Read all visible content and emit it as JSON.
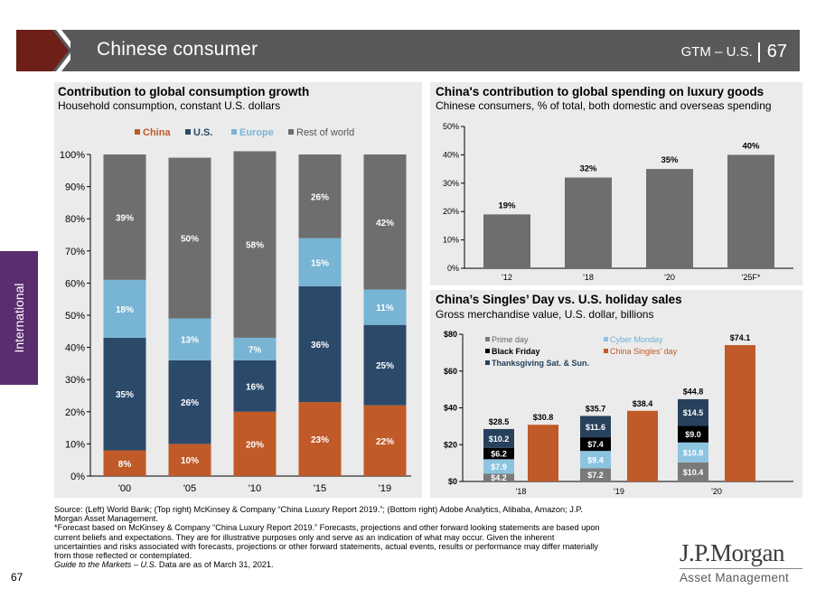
{
  "header": {
    "title": "Chinese consumer",
    "right_label": "GTM – U.S.",
    "page": "67"
  },
  "side_tab": "International",
  "colors": {
    "china": "#c05a28",
    "us": "#2b4a6a",
    "europe": "#78b4d3",
    "rest": "#6e6e6e",
    "prime": "#7a7a7a",
    "black_friday": "#000000",
    "cyber": "#8cc4e0",
    "thanksgiving": "#27415d",
    "singles": "#c05a28"
  },
  "left_chart": {
    "title": "Contribution to global consumption growth",
    "subtitle": "Household consumption, constant U.S. dollars",
    "legend": [
      "China",
      "U.S.",
      "Europe",
      "Rest of world"
    ],
    "yticks": [
      "100%",
      "90%",
      "80%",
      "70%",
      "60%",
      "50%",
      "40%",
      "30%",
      "20%",
      "10%",
      "0%"
    ]
  },
  "top_right_chart": {
    "title": "China's contribution to global spending on luxury goods",
    "subtitle": "Chinese consumers, % of total, both domestic and overseas spending",
    "yticks": [
      "50%",
      "40%",
      "30%",
      "20%",
      "10%",
      "0%"
    ]
  },
  "bottom_right_chart": {
    "title": "China’s Singles’ Day vs. U.S. holiday sales",
    "subtitle": "Gross merchandise value, U.S. dollar, billions",
    "legend": [
      "Prime day",
      "Black Friday",
      "Thanksgiving Sat. & Sun.",
      "Cyber Monday",
      "China Singles' day"
    ],
    "yticks": [
      "$80",
      "$60",
      "$40",
      "$20",
      "$0"
    ]
  },
  "chart_data": [
    {
      "type": "bar",
      "stacked": true,
      "title": "Contribution to global consumption growth",
      "subtitle": "Household consumption, constant U.S. dollars",
      "categories": [
        "'00",
        "'05",
        "'10",
        "'15",
        "'19"
      ],
      "series": [
        {
          "name": "China",
          "values": [
            8,
            10,
            20,
            23,
            22
          ],
          "labels": [
            "8%",
            "10%",
            "20%",
            "23%",
            "22%"
          ]
        },
        {
          "name": "U.S.",
          "values": [
            35,
            26,
            16,
            36,
            25
          ],
          "labels": [
            "35%",
            "26%",
            "16%",
            "36%",
            "25%"
          ]
        },
        {
          "name": "Europe",
          "values": [
            18,
            13,
            7,
            15,
            11
          ],
          "labels": [
            "18%",
            "13%",
            "7%",
            "15%",
            "11%"
          ]
        },
        {
          "name": "Rest of world",
          "values": [
            39,
            50,
            58,
            26,
            42
          ],
          "labels": [
            "39%",
            "50%",
            "58%",
            "26%",
            "42%"
          ]
        }
      ],
      "ylim": [
        0,
        100
      ],
      "legend_position": "top"
    },
    {
      "type": "bar",
      "title": "China's contribution to global spending on luxury goods",
      "subtitle": "Chinese consumers, % of total, both domestic and overseas spending",
      "categories": [
        "'12",
        "'18",
        "'20",
        "'25F*"
      ],
      "values": [
        19,
        32,
        35,
        40
      ],
      "labels": [
        "19%",
        "32%",
        "35%",
        "40%"
      ],
      "ylim": [
        0,
        50
      ]
    },
    {
      "type": "bar",
      "title": "China’s Singles’ Day vs. U.S. holiday sales",
      "subtitle": "Gross merchandise value, U.S. dollar, billions",
      "categories": [
        "'18",
        "'19",
        "'20"
      ],
      "us_stack_series": [
        {
          "name": "Prime day",
          "values": [
            4.2,
            7.2,
            10.4
          ],
          "labels": [
            "$4.2",
            "$7.2",
            "$10.4"
          ]
        },
        {
          "name": "Cyber Monday",
          "values": [
            7.9,
            9.4,
            10.8
          ],
          "labels": [
            "$7.9",
            "$9.4",
            "$10.8"
          ]
        },
        {
          "name": "Black Friday",
          "values": [
            6.2,
            7.4,
            9.0
          ],
          "labels": [
            "$6.2",
            "$7.4",
            "$9.0"
          ]
        },
        {
          "name": "Thanksgiving Sat. & Sun.",
          "values": [
            10.2,
            11.6,
            14.5
          ],
          "labels": [
            "$10.2",
            "$11.6",
            "$14.5"
          ]
        }
      ],
      "us_totals": [
        "$28.5",
        "$35.7",
        "$44.8"
      ],
      "us_total_values": [
        28.5,
        35.7,
        44.8
      ],
      "china_series": {
        "name": "China Singles' day",
        "values": [
          30.8,
          38.4,
          74.1
        ],
        "labels": [
          "$30.8",
          "$38.4",
          "$74.1"
        ]
      },
      "ylim": [
        0,
        80
      ],
      "legend_position": "top-left"
    }
  ],
  "footer": {
    "lines": [
      "Source: (Left) World Bank; (Top right) McKinsey & Company “China Luxury Report 2019.”; (Bottom right) Adobe Analytics, Alibaba, Amazon; J.P.",
      "Morgan Asset Management.",
      "*Forecast based on McKinsey & Company “China Luxury Report 2019.” Forecasts, projections and other forward looking statements are based upon",
      "current beliefs and expectations. They are for illustrative purposes only and serve as an indication of what may occur. Given the inherent",
      "uncertainties and risks associated with forecasts, projections or other forward statements, actual events, results or performance may differ materially",
      "from those reflected or contemplated."
    ],
    "guide_italic": "Guide to the Markets – U.S.",
    "guide_rest": " Data are as of March 31, 2021."
  },
  "page_number": "67",
  "logo": {
    "name": "J.P.Morgan",
    "sub": "Asset Management"
  }
}
